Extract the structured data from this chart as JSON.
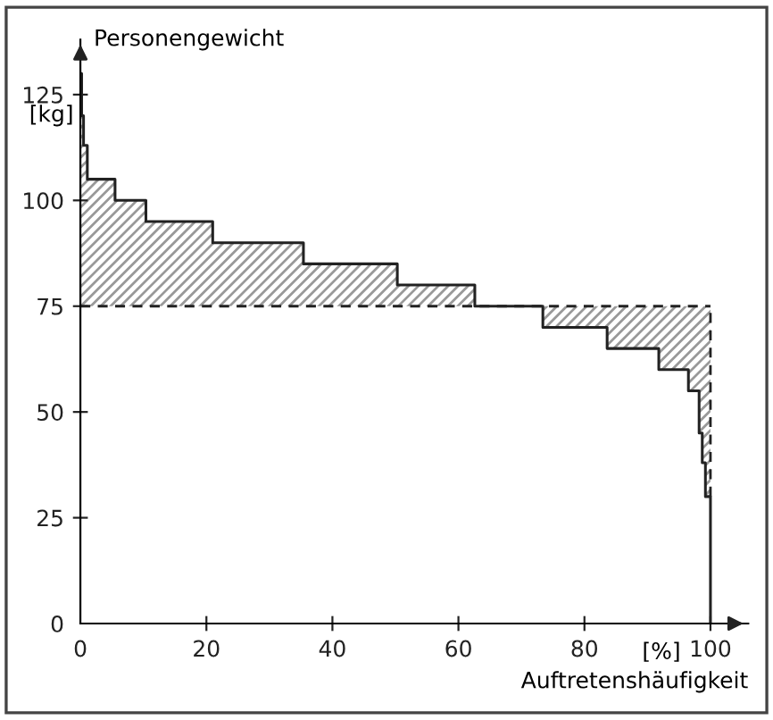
{
  "chart_data": {
    "type": "step",
    "xlabel": "Auftretenshäufigkeit",
    "ylabel": "Personengewicht",
    "annotations": [
      "[kg]",
      "[%]"
    ],
    "xlim": [
      0,
      106
    ],
    "ylim": [
      0,
      138
    ],
    "xticks": [
      0,
      20,
      40,
      60,
      80,
      100
    ],
    "yticks": [
      0,
      25,
      50,
      75,
      100,
      125
    ],
    "series": [
      {
        "color": "#222222",
        "x": [
          0,
          0.2,
          0.5,
          1.1,
          5.5,
          10.4,
          21,
          35.4,
          50.3,
          62.6,
          73.4,
          83.6,
          91.8,
          96.5,
          98.2,
          98.7,
          99.2,
          100
        ],
        "values": [
          130,
          120,
          113,
          105,
          100,
          95,
          90,
          85,
          80,
          75,
          70,
          65,
          60,
          55,
          45,
          38,
          30,
          0
        ],
        "lower": [
          75,
          75,
          75,
          75,
          75,
          75,
          75,
          75,
          75,
          75,
          70,
          65,
          60,
          55,
          45,
          38,
          30,
          0
        ],
        "upper": [
          130,
          120,
          113,
          105,
          100,
          95,
          90,
          85,
          80,
          75,
          75,
          75,
          75,
          75,
          75,
          75,
          75,
          75
        ]
      }
    ],
    "ref_lines": [
      {
        "axis": "y",
        "value": 75,
        "color": "#222222",
        "line_style": "dashed"
      }
    ],
    "grid": false,
    "legend": false
  }
}
